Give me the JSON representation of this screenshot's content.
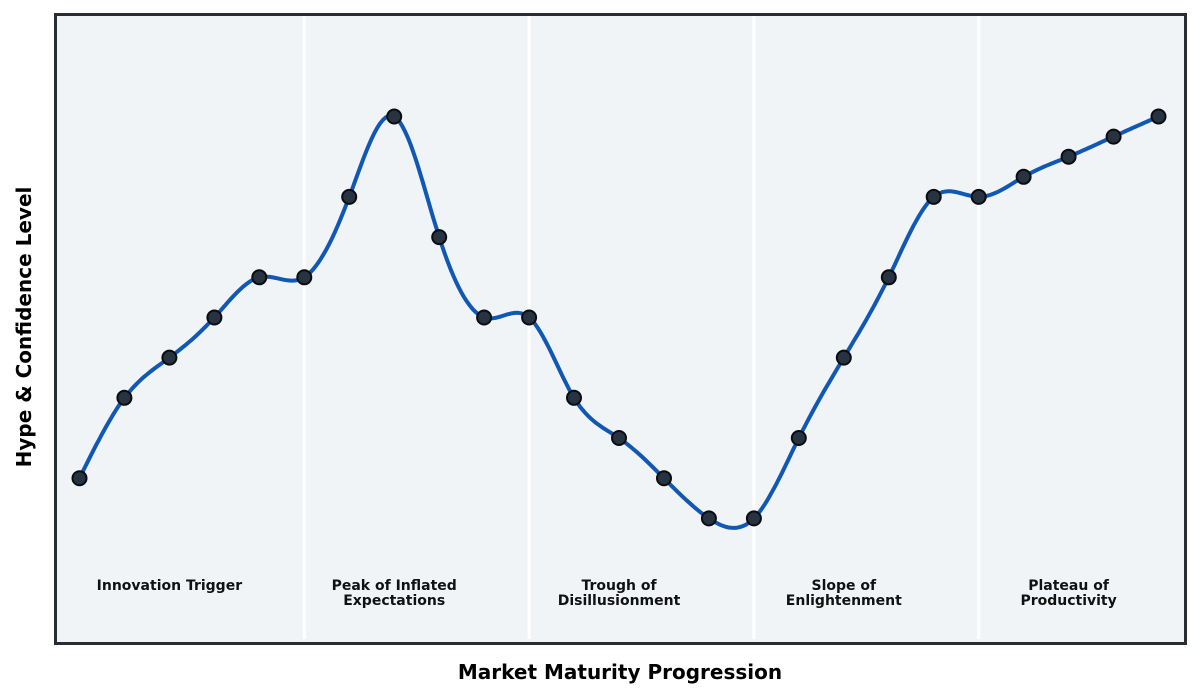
{
  "figure": {
    "background": "#ffffff",
    "kind": "hype-cycle-chart"
  },
  "chart_data": {
    "type": "line",
    "title": "",
    "xlabel": "Market Maturity Progression",
    "ylabel": "Hype & Confidence Level",
    "x": [
      0,
      1,
      2,
      3,
      4,
      5,
      6,
      7,
      8,
      9,
      10,
      11,
      12,
      13,
      14,
      15,
      16,
      17,
      18,
      19,
      20,
      21,
      22,
      23,
      24
    ],
    "series": [
      {
        "name": "hype-curve",
        "values": [
          15,
          35,
          45,
          55,
          65,
          65,
          85,
          105,
          75,
          55,
          55,
          35,
          25,
          15,
          5,
          5,
          25,
          45,
          65,
          85,
          85,
          90,
          95,
          100,
          105
        ]
      }
    ],
    "xlim": [
      -0.5,
      24.5
    ],
    "ylim": [
      -25,
      130
    ],
    "grid": false,
    "legend_position": "none",
    "ticks_visible": false,
    "smooth_interpolation": "cubic-spline",
    "separators_x": [
      5,
      10,
      15,
      20
    ],
    "phase_label_y": -10,
    "phases": [
      {
        "label": "Innovation Trigger",
        "center_x": 2
      },
      {
        "label": "Peak of Inflated\nExpectations",
        "center_x": 7
      },
      {
        "label": "Trough of\nDisillusionment",
        "center_x": 12
      },
      {
        "label": "Slope of\nEnlightenment",
        "center_x": 17
      },
      {
        "label": "Plateau of\nProductivity",
        "center_x": 22
      }
    ],
    "style": {
      "line_color": "#1158b4",
      "line_width": 4,
      "marker_fill": "#273341",
      "marker_edge": "#0a0c0e",
      "marker_radius": 7,
      "marker_edge_width": 2,
      "plot_background": "#f0f4f7",
      "separator_color": "#ffffff",
      "separator_width": 3,
      "frame_color": "#282d33",
      "label_color": "#111111"
    }
  }
}
